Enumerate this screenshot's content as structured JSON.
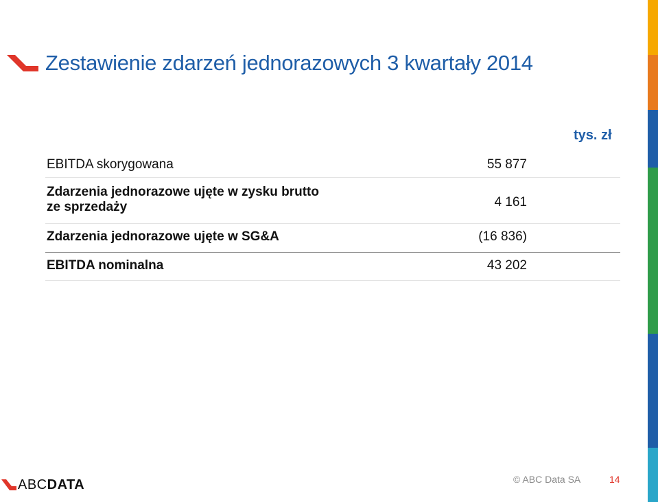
{
  "slide": {
    "title": "Zestawienie zdarzeń jednorazowych 3 kwartały 2014",
    "unit": "tys. zł"
  },
  "table": {
    "rows": [
      {
        "label_line1": "EBITDA skorygowana",
        "value": "55 877"
      },
      {
        "label_line1": "Zdarzenia jednorazowe ujęte w zysku brutto",
        "label_line2": "ze sprzedaży",
        "value": "4 161"
      },
      {
        "label_line1": "Zdarzenia jednorazowe ujęte w SG&A",
        "value": "(16 836)"
      },
      {
        "label_line1": "EBITDA nominalna",
        "value": "43 202"
      }
    ]
  },
  "footer": {
    "brand_prefix": "ABC",
    "brand_suffix": "DATA",
    "copyright": "© ABC Data SA",
    "page_number": "14"
  },
  "colors": {
    "title": "#1f5ea8",
    "accent_red": "#e0362a",
    "sidebar": [
      "#f6a800",
      "#e87a1e",
      "#1f5ea8",
      "#2f9c4a",
      "#1f5ea8",
      "#2aa6c9"
    ]
  },
  "icons": [
    "abc-data-swoosh-logo",
    "abc-data-brand-logo"
  ]
}
